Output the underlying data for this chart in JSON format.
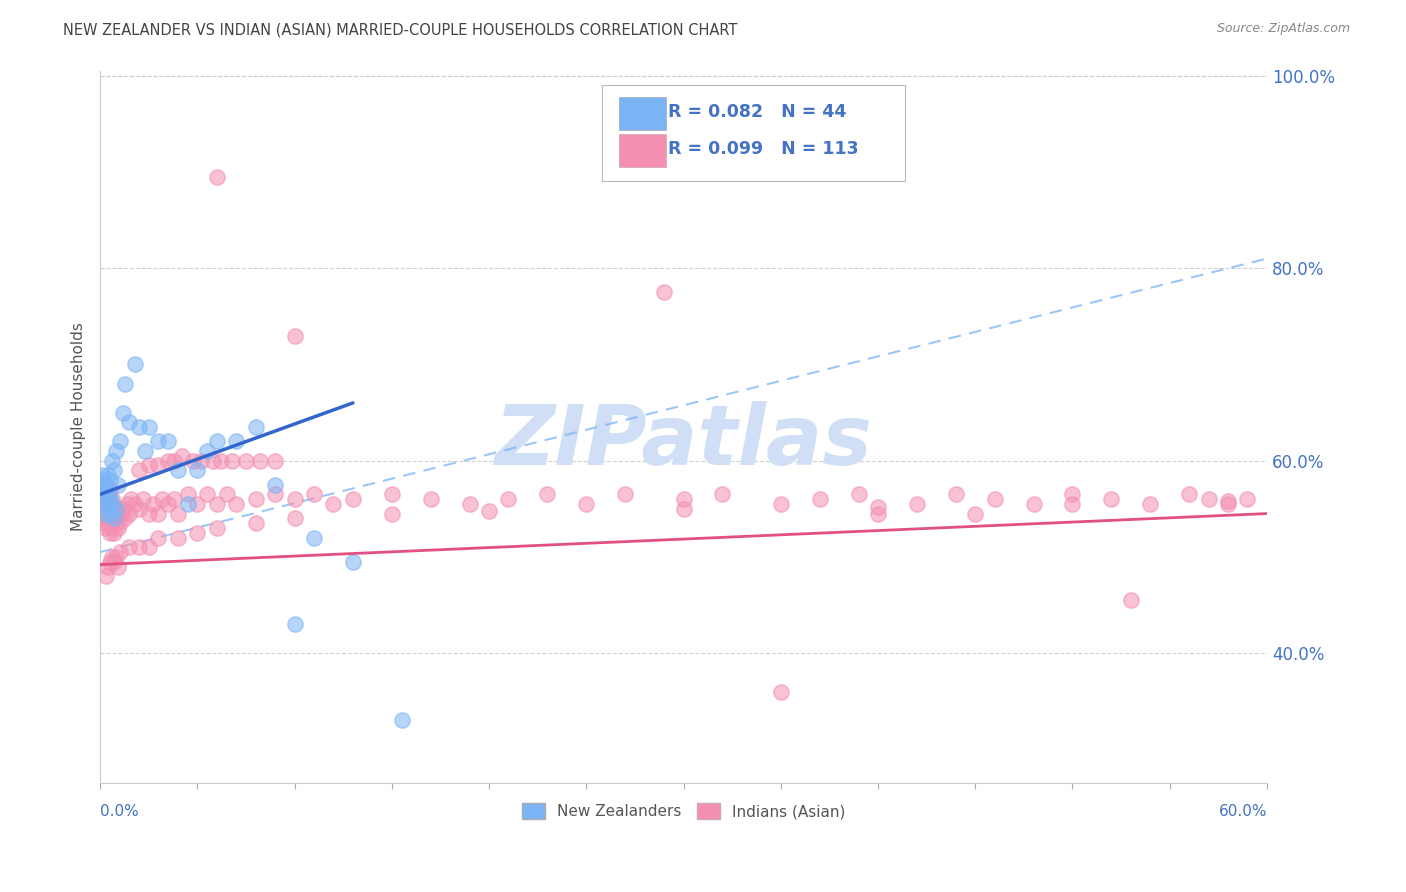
{
  "title": "NEW ZEALANDER VS INDIAN (ASIAN) MARRIED-COUPLE HOUSEHOLDS CORRELATION CHART",
  "source": "Source: ZipAtlas.com",
  "ylabel": "Married-couple Households",
  "nz_color": "#7ab4f5",
  "nz_line_color": "#3366cc",
  "in_color": "#f48fb1",
  "in_line_color": "#e05080",
  "dash_color": "#7ab4f5",
  "watermark_color": "#d0dff5",
  "xmin": 0.0,
  "xmax": 0.6,
  "ymin": 0.265,
  "ymax": 1.005,
  "ytick_vals": [
    0.4,
    0.6,
    0.8,
    1.0
  ],
  "ytick_labels": [
    "40.0%",
    "60.0%",
    "80.0%",
    "100.0%"
  ],
  "background_color": "#ffffff",
  "grid_color": "#cccccc",
  "title_color": "#444444",
  "tick_color": "#4472c4",
  "nz_x": [
    0.001,
    0.001,
    0.001,
    0.002,
    0.002,
    0.002,
    0.003,
    0.003,
    0.003,
    0.004,
    0.004,
    0.004,
    0.005,
    0.005,
    0.005,
    0.006,
    0.006,
    0.007,
    0.007,
    0.008,
    0.008,
    0.009,
    0.01,
    0.012,
    0.013,
    0.015,
    0.018,
    0.02,
    0.023,
    0.025,
    0.03,
    0.035,
    0.04,
    0.045,
    0.05,
    0.055,
    0.06,
    0.07,
    0.08,
    0.09,
    0.1,
    0.11,
    0.13,
    0.155
  ],
  "nz_y": [
    0.565,
    0.575,
    0.585,
    0.555,
    0.57,
    0.58,
    0.545,
    0.56,
    0.575,
    0.55,
    0.565,
    0.585,
    0.545,
    0.56,
    0.58,
    0.555,
    0.6,
    0.54,
    0.59,
    0.55,
    0.61,
    0.575,
    0.62,
    0.65,
    0.68,
    0.64,
    0.7,
    0.635,
    0.61,
    0.635,
    0.62,
    0.62,
    0.59,
    0.555,
    0.59,
    0.61,
    0.62,
    0.62,
    0.635,
    0.575,
    0.43,
    0.52,
    0.495,
    0.33
  ],
  "in_x": [
    0.001,
    0.001,
    0.002,
    0.002,
    0.002,
    0.003,
    0.003,
    0.003,
    0.003,
    0.004,
    0.004,
    0.004,
    0.005,
    0.005,
    0.005,
    0.005,
    0.006,
    0.006,
    0.006,
    0.007,
    0.007,
    0.008,
    0.008,
    0.009,
    0.009,
    0.01,
    0.01,
    0.011,
    0.012,
    0.013,
    0.014,
    0.015,
    0.016,
    0.018,
    0.02,
    0.022,
    0.025,
    0.027,
    0.03,
    0.032,
    0.035,
    0.038,
    0.04,
    0.045,
    0.05,
    0.055,
    0.06,
    0.065,
    0.07,
    0.08,
    0.09,
    0.1,
    0.11,
    0.12,
    0.13,
    0.15,
    0.17,
    0.19,
    0.21,
    0.23,
    0.25,
    0.27,
    0.3,
    0.32,
    0.35,
    0.37,
    0.39,
    0.42,
    0.44,
    0.46,
    0.48,
    0.5,
    0.52,
    0.54,
    0.56,
    0.57,
    0.58,
    0.59,
    0.06,
    0.1,
    0.29,
    0.35,
    0.4,
    0.45,
    0.53,
    0.003,
    0.004,
    0.005,
    0.006,
    0.007,
    0.008,
    0.009,
    0.01,
    0.015,
    0.02,
    0.025,
    0.03,
    0.04,
    0.05,
    0.06,
    0.08,
    0.1,
    0.15,
    0.2,
    0.3,
    0.4,
    0.5,
    0.58,
    0.02,
    0.025,
    0.03,
    0.035,
    0.038,
    0.042,
    0.048,
    0.052,
    0.058,
    0.062,
    0.068,
    0.075,
    0.082,
    0.09
  ],
  "in_y": [
    0.54,
    0.55,
    0.535,
    0.545,
    0.56,
    0.53,
    0.545,
    0.555,
    0.57,
    0.535,
    0.55,
    0.565,
    0.525,
    0.54,
    0.555,
    0.57,
    0.53,
    0.545,
    0.56,
    0.525,
    0.545,
    0.535,
    0.55,
    0.53,
    0.545,
    0.535,
    0.55,
    0.545,
    0.55,
    0.54,
    0.555,
    0.545,
    0.56,
    0.555,
    0.55,
    0.56,
    0.545,
    0.555,
    0.545,
    0.56,
    0.555,
    0.56,
    0.545,
    0.565,
    0.555,
    0.565,
    0.555,
    0.565,
    0.555,
    0.56,
    0.565,
    0.56,
    0.565,
    0.555,
    0.56,
    0.565,
    0.56,
    0.555,
    0.56,
    0.565,
    0.555,
    0.565,
    0.56,
    0.565,
    0.555,
    0.56,
    0.565,
    0.555,
    0.565,
    0.56,
    0.555,
    0.565,
    0.56,
    0.555,
    0.565,
    0.56,
    0.555,
    0.56,
    0.895,
    0.73,
    0.775,
    0.36,
    0.545,
    0.545,
    0.455,
    0.48,
    0.49,
    0.495,
    0.5,
    0.495,
    0.5,
    0.49,
    0.505,
    0.51,
    0.51,
    0.51,
    0.52,
    0.52,
    0.525,
    0.53,
    0.535,
    0.54,
    0.545,
    0.548,
    0.55,
    0.552,
    0.555,
    0.558,
    0.59,
    0.595,
    0.595,
    0.6,
    0.6,
    0.605,
    0.6,
    0.6,
    0.6,
    0.6,
    0.6,
    0.6,
    0.6,
    0.6
  ],
  "nz_line_x0": 0.0,
  "nz_line_x1": 0.13,
  "nz_line_y0": 0.565,
  "nz_line_y1": 0.66,
  "in_line_x0": 0.0,
  "in_line_x1": 0.6,
  "in_line_y0": 0.492,
  "in_line_y1": 0.545,
  "dash_line_x0": 0.0,
  "dash_line_x1": 0.6,
  "dash_line_y0": 0.505,
  "dash_line_y1": 0.81
}
